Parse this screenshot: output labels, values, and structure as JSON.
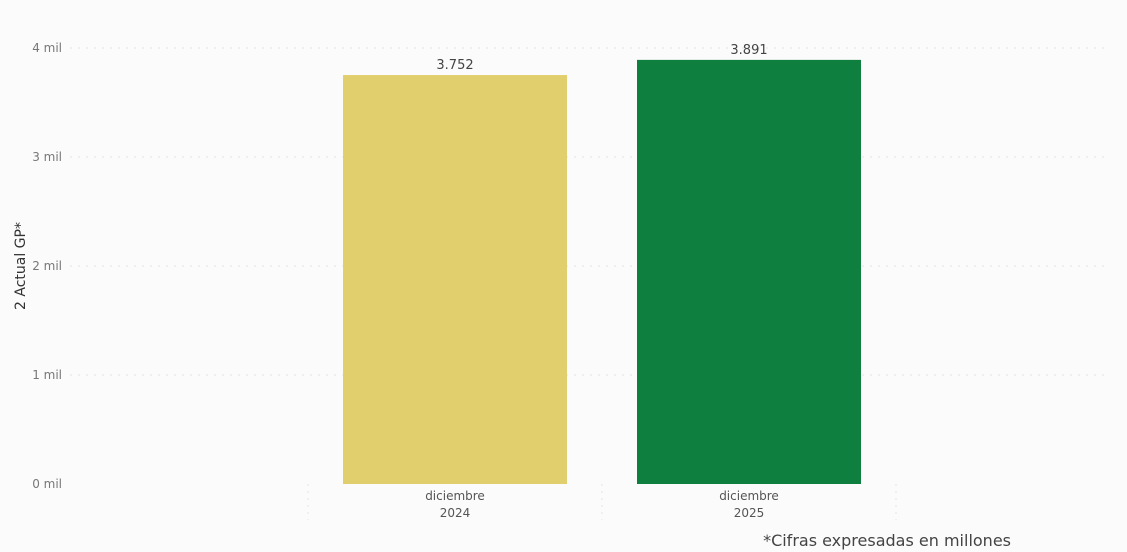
{
  "chart_data": {
    "type": "bar",
    "categories": [
      [
        "diciembre",
        "2024"
      ],
      [
        "diciembre",
        "2025"
      ]
    ],
    "values": [
      3752,
      3891
    ],
    "value_labels": [
      "3.752",
      "3.891"
    ],
    "ylabel": "2 Actual GP*",
    "ylim": [
      0,
      4000
    ],
    "yticks": [
      0,
      1000,
      2000,
      3000,
      4000
    ],
    "ytick_labels": [
      "0 mil",
      "1 mil",
      "2 mil",
      "3 mil",
      "4 mil"
    ],
    "grid": true,
    "bar_colors": [
      "#E1CF6E",
      "#0E7F3F"
    ]
  },
  "footnote": "*Cifras expresadas en millones"
}
